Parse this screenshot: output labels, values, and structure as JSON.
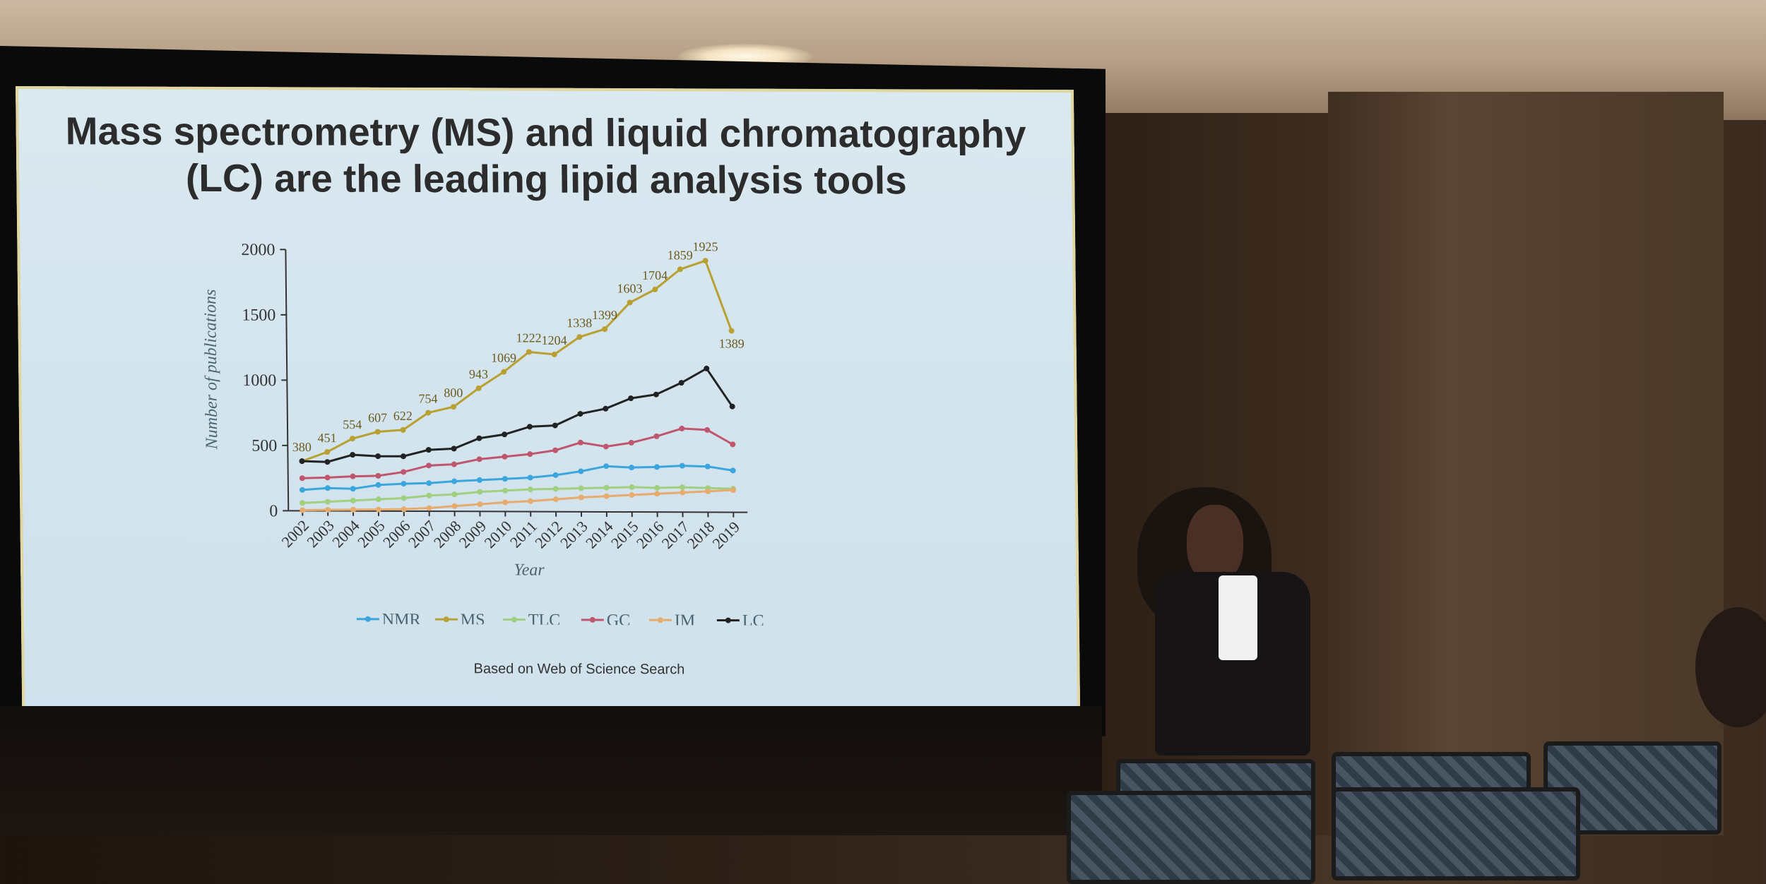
{
  "slide": {
    "title_line1": "Mass spectrometry (MS) and liquid chromatography",
    "title_line2": "(LC) are the leading lipid analysis tools",
    "footnote": "Based on Web of Science Search"
  },
  "chart_data": {
    "type": "line",
    "xlabel": "Year",
    "ylabel": "Number of publications",
    "ylim": [
      0,
      2000
    ],
    "yticks": [
      0,
      500,
      1000,
      1500,
      2000
    ],
    "categories": [
      "2002",
      "2003",
      "2004",
      "2005",
      "2006",
      "2007",
      "2008",
      "2009",
      "2010",
      "2011",
      "2012",
      "2013",
      "2014",
      "2015",
      "2016",
      "2017",
      "2018",
      "2019"
    ],
    "legend_position": "bottom",
    "series": [
      {
        "name": "NMR",
        "color": "#3aa6dd",
        "values": [
          160,
          175,
          170,
          200,
          210,
          215,
          230,
          240,
          250,
          260,
          280,
          310,
          350,
          340,
          345,
          355,
          350,
          320
        ]
      },
      {
        "name": "MS",
        "color": "#b8a032",
        "values": [
          380,
          451,
          554,
          607,
          622,
          754,
          800,
          943,
          1069,
          1222,
          1204,
          1338,
          1399,
          1603,
          1704,
          1859,
          1925,
          1389
        ],
        "labels": true
      },
      {
        "name": "TLC",
        "color": "#9fcf7f",
        "values": [
          60,
          70,
          80,
          90,
          100,
          120,
          130,
          150,
          160,
          170,
          175,
          180,
          185,
          190,
          185,
          190,
          185,
          180
        ]
      },
      {
        "name": "GC",
        "color": "#c0566e",
        "values": [
          250,
          255,
          265,
          270,
          300,
          350,
          360,
          400,
          420,
          440,
          470,
          530,
          500,
          530,
          580,
          640,
          630,
          520
        ]
      },
      {
        "name": "IM",
        "color": "#e7ab6e",
        "values": [
          5,
          8,
          10,
          12,
          15,
          25,
          40,
          55,
          70,
          80,
          95,
          110,
          120,
          130,
          140,
          150,
          160,
          170
        ]
      },
      {
        "name": "LC",
        "color": "#222222",
        "values": [
          380,
          375,
          430,
          420,
          420,
          470,
          480,
          560,
          590,
          650,
          660,
          750,
          790,
          870,
          900,
          990,
          1100,
          810
        ]
      }
    ]
  }
}
